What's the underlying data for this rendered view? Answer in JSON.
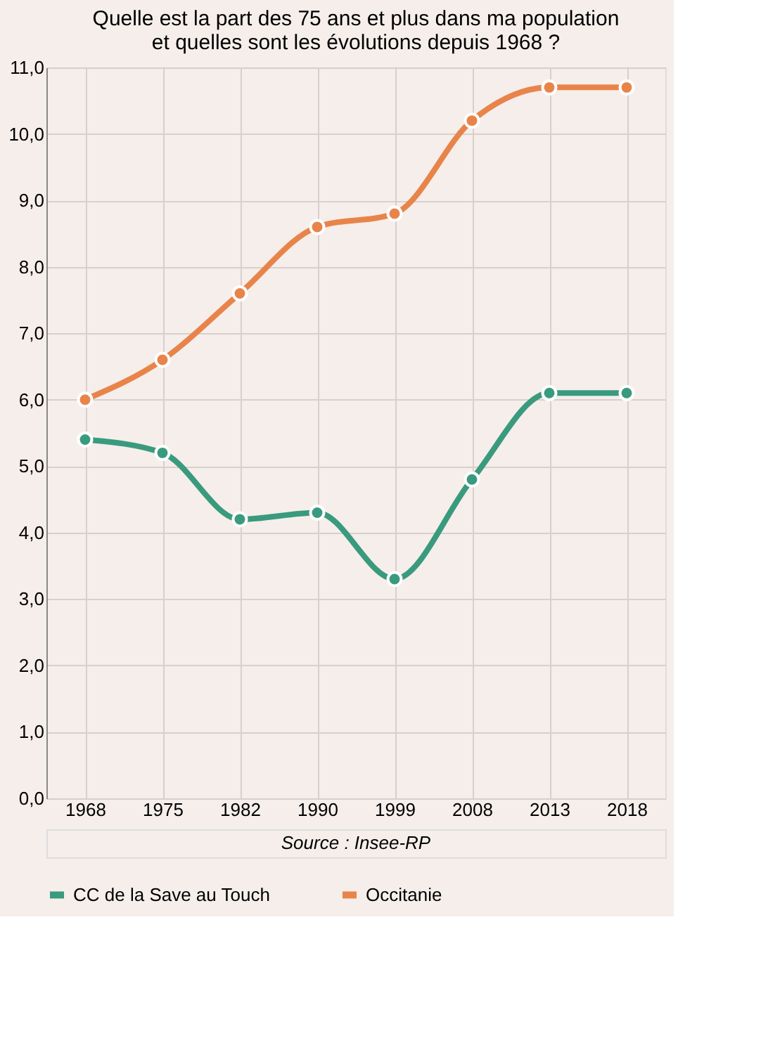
{
  "chart_data": {
    "type": "line",
    "title": "Quelle est la part des 75 ans et plus dans ma population et quelles sont les évolutions depuis 1968 ?",
    "categories": [
      "1968",
      "1975",
      "1982",
      "1990",
      "1999",
      "2008",
      "2013",
      "2018"
    ],
    "series": [
      {
        "name": "CC de la Save au Touch",
        "color": "#3a9a7e",
        "values": [
          5.4,
          5.2,
          4.2,
          4.3,
          3.3,
          4.8,
          6.1,
          6.1
        ]
      },
      {
        "name": "Occitanie",
        "color": "#e8844a",
        "values": [
          6.0,
          6.6,
          7.6,
          8.6,
          8.8,
          10.2,
          10.7,
          10.7
        ]
      }
    ],
    "ylim": [
      0,
      11
    ],
    "yticks": [
      {
        "value": 0,
        "label": "0,0"
      },
      {
        "value": 1,
        "label": "1,0"
      },
      {
        "value": 2,
        "label": "2,0"
      },
      {
        "value": 3,
        "label": "3,0"
      },
      {
        "value": 4,
        "label": "4,0"
      },
      {
        "value": 5,
        "label": "5,0"
      },
      {
        "value": 6,
        "label": "6,0"
      },
      {
        "value": 7,
        "label": "7,0"
      },
      {
        "value": 8,
        "label": "8,0"
      },
      {
        "value": 9,
        "label": "9,0"
      },
      {
        "value": 10,
        "label": "10,0"
      },
      {
        "value": 11,
        "label": "11,0"
      }
    ],
    "grid": true,
    "legend": "bottom",
    "marker": "circle",
    "line_style": "solid",
    "annotations": [
      "Source : Insee-RP"
    ]
  }
}
